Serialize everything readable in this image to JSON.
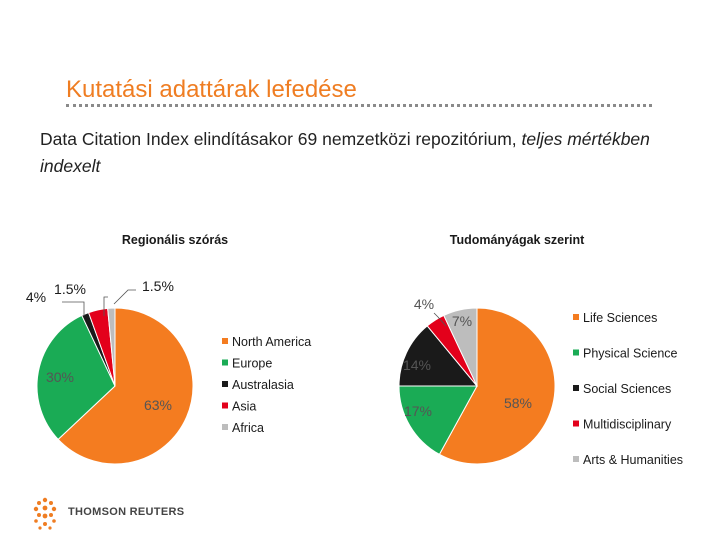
{
  "slide": {
    "title": "Kutatási adattárak lefedése",
    "body_plain": "Data Citation Index elindításakor 69 nemzetközi repozitórium, ",
    "body_emph": "teljes mértékben indexelt"
  },
  "brand": {
    "logo_text": "THOMSON REUTERS",
    "accent": "#ef7d22"
  },
  "chart_data": [
    {
      "type": "pie",
      "title": "Regionális szórás",
      "categories": [
        "North America",
        "Europe",
        "Australasia",
        "Asia",
        "Africa"
      ],
      "values": [
        63,
        30,
        1.5,
        4,
        1.5
      ],
      "labels": [
        "63%",
        "30%",
        "",
        "4%",
        "1.5%"
      ],
      "extra_labels": [
        "1.5%"
      ],
      "colors": [
        "#f47c20",
        "#1aab55",
        "#1a1a1a",
        "#e3001b",
        "#bdbdbd"
      ],
      "legend_position": "right"
    },
    {
      "type": "pie",
      "title": "Tudományágak szerint",
      "categories": [
        "Life Sciences",
        "Physical Science",
        "Social Sciences",
        "Multidisciplinary",
        "Arts & Humanities"
      ],
      "values": [
        58,
        17,
        14,
        4,
        7
      ],
      "labels": [
        "58%",
        "17%",
        "14%",
        "4%",
        "7%"
      ],
      "colors": [
        "#f47c20",
        "#1aab55",
        "#1a1a1a",
        "#e3001b",
        "#bdbdbd"
      ],
      "legend_position": "right"
    }
  ]
}
